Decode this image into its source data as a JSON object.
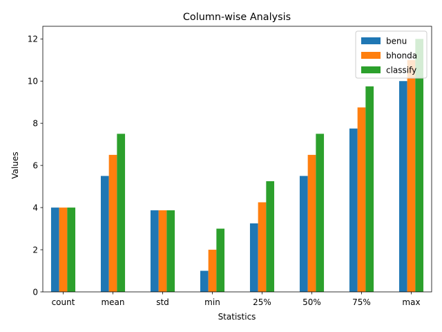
{
  "chart_data": {
    "type": "bar",
    "title": "Column-wise Analysis",
    "xlabel": "Statistics",
    "ylabel": "Values",
    "categories": [
      "count",
      "mean",
      "std",
      "min",
      "25%",
      "50%",
      "75%",
      "max"
    ],
    "ylim": [
      0,
      12.6
    ],
    "yticks": [
      0,
      2,
      4,
      6,
      8,
      10,
      12
    ],
    "grid": false,
    "legend_position": "top-right",
    "series": [
      {
        "name": "benu",
        "color": "#1f77b4",
        "values": [
          4,
          5.5,
          3.87,
          1,
          3.25,
          5.5,
          7.75,
          10
        ]
      },
      {
        "name": "bhonda",
        "color": "#ff7f0e",
        "values": [
          4,
          6.5,
          3.87,
          2,
          4.25,
          6.5,
          8.75,
          11
        ]
      },
      {
        "name": "classify",
        "color": "#2ca02c",
        "values": [
          4,
          7.5,
          3.87,
          3,
          5.25,
          7.5,
          9.75,
          12
        ]
      }
    ]
  }
}
